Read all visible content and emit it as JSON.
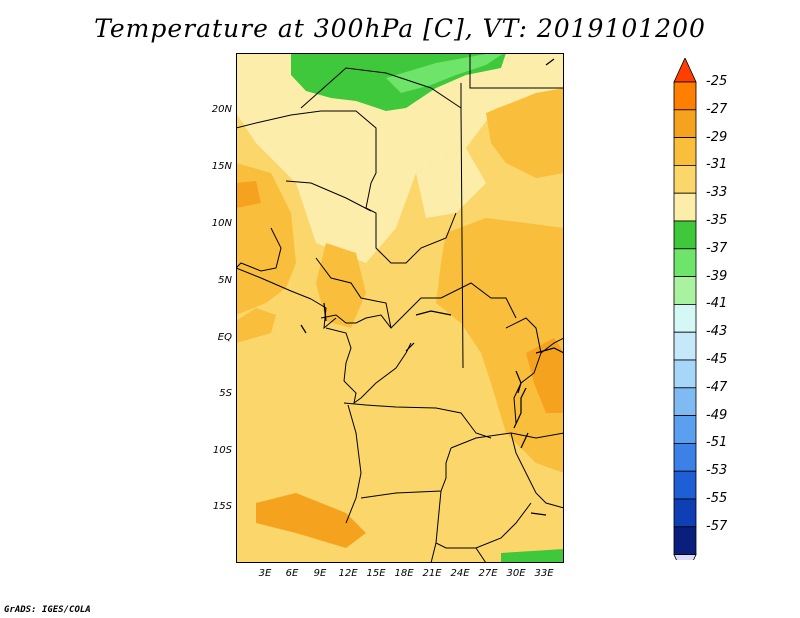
{
  "title": "Temperature at 300hPa [C], VT: 2019101200",
  "credit": "GrADS: IGES/COLA",
  "map": {
    "lat_labels": [
      "20N",
      "15N",
      "10N",
      "5N",
      "EQ",
      "5S",
      "10S",
      "15S"
    ],
    "lon_labels": [
      "3E",
      "6E",
      "9E",
      "12E",
      "15E",
      "18E",
      "21E",
      "24E",
      "27E",
      "30E",
      "33E"
    ]
  },
  "colorbar": {
    "labels": [
      "-25",
      "-27",
      "-29",
      "-31",
      "-33",
      "-35",
      "-37",
      "-39",
      "-41",
      "-43",
      "-45",
      "-47",
      "-49",
      "-51",
      "-53",
      "-55",
      "-57"
    ],
    "colors": [
      "#ff3f00",
      "#ff7f00",
      "#f5a21e",
      "#f9be3c",
      "#fbd66a",
      "#fdedab",
      "#3fc83c",
      "#6ee46a",
      "#a8f2a0",
      "#d4f8f6",
      "#c6e8fb",
      "#a6d6f8",
      "#7fbaf3",
      "#5b9ff0",
      "#3c81e8",
      "#1f5fd6",
      "#0f3fb5",
      "#0a1f7c",
      "#dcdcfa"
    ]
  }
}
